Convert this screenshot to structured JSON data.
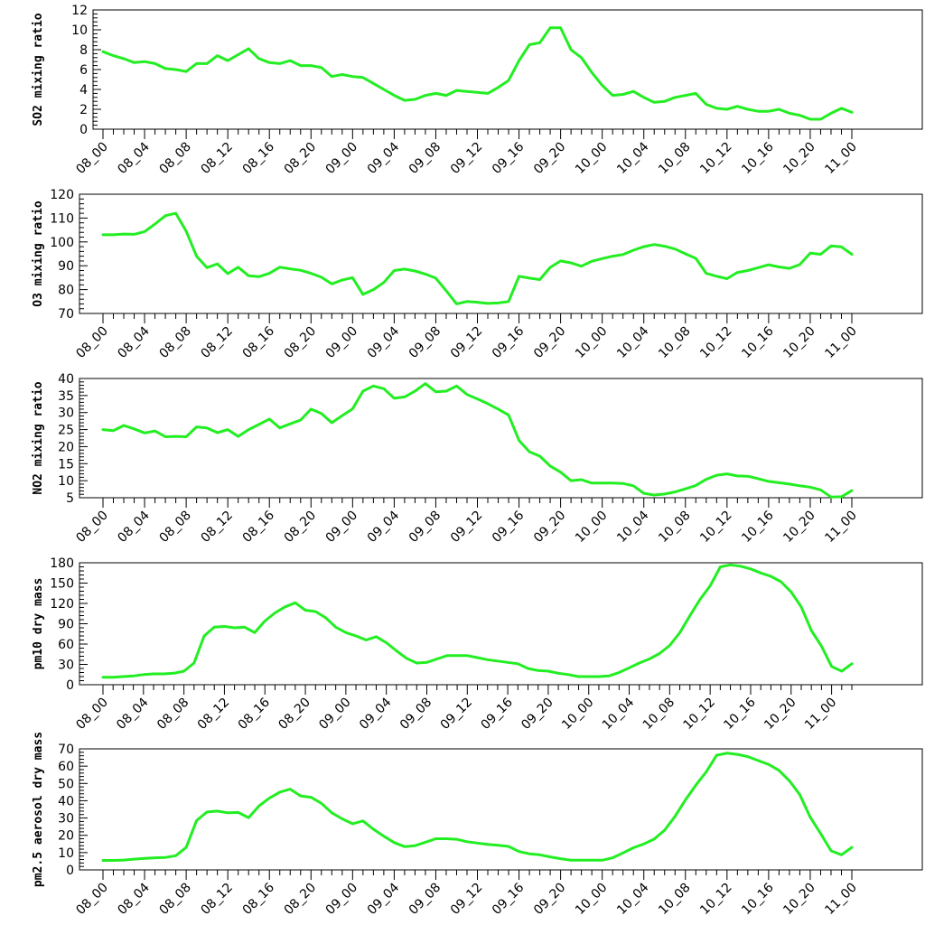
{
  "chart_data": [
    {
      "type": "line",
      "ylabel": "SO2 mixing ratio",
      "ylim": [
        0,
        12
      ],
      "yticks": [
        0,
        2,
        4,
        6,
        8,
        10,
        12
      ],
      "x_tick_labels": [
        "08_00",
        "08_04",
        "08_08",
        "08_12",
        "08_16",
        "08_20",
        "09_00",
        "09_04",
        "09_08",
        "09_12",
        "09_16",
        "09_20",
        "10_00",
        "10_04",
        "10_08",
        "10_12",
        "10_16",
        "10_20",
        "11_00"
      ],
      "line_color": "#22ee22",
      "values": [
        7.8,
        7.4,
        7.1,
        6.7,
        6.8,
        6.6,
        6.1,
        6.0,
        5.8,
        6.6,
        6.6,
        7.4,
        6.9,
        7.5,
        8.1,
        7.1,
        6.7,
        6.6,
        6.9,
        6.4,
        6.4,
        6.2,
        5.3,
        5.5,
        5.3,
        5.2,
        4.6,
        4.0,
        3.4,
        2.9,
        3.0,
        3.4,
        3.6,
        3.4,
        3.9,
        3.8,
        3.7,
        3.6,
        4.2,
        4.9,
        6.9,
        8.5,
        8.7,
        10.2,
        10.2,
        8.0,
        7.2,
        5.7,
        4.4,
        3.4,
        3.5,
        3.8,
        3.2,
        2.7,
        2.8,
        3.2,
        3.4,
        3.6,
        2.5,
        2.1,
        2.0,
        2.3,
        2.0,
        1.8,
        1.8,
        2.0,
        1.6,
        1.4,
        1.0,
        1.0,
        1.6,
        2.1,
        1.7
      ]
    },
    {
      "type": "line",
      "ylabel": "O3 mixing ratio",
      "ylim": [
        70,
        120
      ],
      "yticks": [
        70,
        80,
        90,
        100,
        110,
        120
      ],
      "x_tick_labels": [
        "08_00",
        "08_04",
        "08_08",
        "08_12",
        "08_16",
        "08_20",
        "09_00",
        "09_04",
        "09_08",
        "09_12",
        "09_16",
        "09_20",
        "10_00",
        "10_04",
        "10_08",
        "10_12",
        "10_16",
        "10_20",
        "11_00"
      ],
      "line_color": "#22ee22",
      "values": [
        103,
        103,
        103.3,
        103.2,
        104.3,
        107.5,
        111,
        112,
        104.5,
        94,
        89.2,
        90.8,
        86.7,
        89.4,
        85.8,
        85.4,
        86.8,
        89.4,
        88.7,
        88.1,
        86.8,
        85.2,
        82.4,
        84,
        85,
        78,
        80,
        83,
        88,
        88.6,
        87.8,
        86.5,
        84.8,
        79.5,
        74,
        75,
        74.7,
        74.2,
        74.4,
        75,
        85.6,
        84.8,
        84.2,
        89.3,
        92,
        91.2,
        89.8,
        91.9,
        93,
        94,
        94.7,
        96.5,
        98,
        98.9,
        98.2,
        97,
        95,
        93.1,
        86.8,
        85.6,
        84.6,
        87.2,
        88,
        89.2,
        90.4,
        89.5,
        88.9,
        90.5,
        95.3,
        94.8,
        98.3,
        97.9,
        94.8
      ]
    },
    {
      "type": "line",
      "ylabel": "NO2 mixing ratio",
      "ylim": [
        5,
        40
      ],
      "yticks": [
        5,
        10,
        15,
        20,
        25,
        30,
        35,
        40
      ],
      "x_tick_labels": [
        "08_00",
        "08_04",
        "08_08",
        "08_12",
        "08_16",
        "08_20",
        "09_00",
        "09_04",
        "09_08",
        "09_12",
        "09_16",
        "09_20",
        "10_00",
        "10_04",
        "10_08",
        "10_12",
        "10_16",
        "10_20",
        "11_00"
      ],
      "line_color": "#22ee22",
      "values": [
        25,
        24.7,
        26.2,
        25.2,
        24,
        24.6,
        22.9,
        23,
        22.9,
        25.8,
        25.5,
        24.1,
        25,
        23,
        25,
        26.5,
        28.1,
        25.5,
        26.7,
        27.8,
        31,
        29.7,
        27,
        29.1,
        31.1,
        36.3,
        37.8,
        37,
        34.2,
        34.6,
        36.3,
        38.5,
        36.1,
        36.3,
        37.8,
        35.3,
        34,
        32.6,
        31,
        29.3,
        21.8,
        18.5,
        17.2,
        14.3,
        12.5,
        10,
        10.3,
        9.3,
        9.3,
        9.3,
        9.2,
        8.5,
        6.3,
        5.8,
        6.1,
        6.7,
        7.6,
        8.6,
        10.4,
        11.6,
        12,
        11.4,
        11.3,
        10.6,
        9.8,
        9.4,
        9,
        8.5,
        8.1,
        7.3,
        5.2,
        5.3,
        7.1
      ]
    },
    {
      "type": "line",
      "ylabel": "pm10 dry mass",
      "ylim": [
        0,
        180
      ],
      "yticks": [
        0,
        30,
        60,
        90,
        120,
        150,
        180
      ],
      "x_tick_labels": [
        "08_00",
        "08_04",
        "08_08",
        "08_12",
        "08_16",
        "08_20",
        "09_00",
        "09_04",
        "09_08",
        "09_12",
        "09_16",
        "09_20",
        "10_00",
        "10_04",
        "10_08",
        "10_12",
        "10_16",
        "10_20",
        "11_00"
      ],
      "line_color": "#22ee22",
      "values": [
        11,
        11,
        12,
        13,
        15,
        16,
        16,
        17,
        20,
        32,
        72,
        85,
        86,
        84,
        85,
        77,
        94,
        106,
        115,
        121,
        110,
        108,
        99,
        85,
        77,
        72,
        66,
        71,
        62,
        50,
        39,
        32,
        33,
        38,
        43,
        43,
        43,
        40,
        37,
        35,
        33,
        31,
        24,
        21,
        20,
        17,
        15,
        12,
        12,
        12,
        13,
        18,
        25,
        32,
        38,
        46,
        58,
        77,
        102,
        126,
        146,
        174,
        177,
        175,
        171,
        165,
        160,
        152,
        137,
        115,
        80,
        57,
        27,
        20,
        31
      ]
    },
    {
      "type": "line",
      "ylabel": "pm2.5 aerosol dry mass",
      "ylim": [
        0,
        70
      ],
      "yticks": [
        0,
        10,
        20,
        30,
        40,
        50,
        60,
        70
      ],
      "x_tick_labels": [
        "08_00",
        "08_04",
        "08_08",
        "08_12",
        "08_16",
        "08_20",
        "09_00",
        "09_04",
        "09_08",
        "09_12",
        "09_16",
        "09_20",
        "10_00",
        "10_04",
        "10_08",
        "10_12",
        "10_16",
        "10_20",
        "11_00"
      ],
      "line_color": "#22ee22",
      "values": [
        5.5,
        5.5,
        5.7,
        6.2,
        6.7,
        7,
        7.2,
        8.2,
        13,
        28.5,
        33.5,
        34,
        33,
        33.2,
        30.2,
        37,
        41.5,
        45,
        46.7,
        42.8,
        42,
        38.5,
        33,
        29.5,
        26.7,
        28.3,
        23.5,
        19.5,
        15.8,
        13.5,
        14,
        16,
        18,
        18,
        17.7,
        16.3,
        15.5,
        14.8,
        14.2,
        13.6,
        10.6,
        9.3,
        8.7,
        7.5,
        6.5,
        5.6,
        5.6,
        5.6,
        5.6,
        7,
        9.8,
        12.8,
        15,
        17.8,
        23,
        31,
        40.5,
        49,
        56.7,
        66.3,
        67.5,
        66.8,
        65.5,
        63.2,
        61,
        57.5,
        51.5,
        43.5,
        30.5,
        21,
        11,
        8.7,
        13
      ]
    }
  ]
}
